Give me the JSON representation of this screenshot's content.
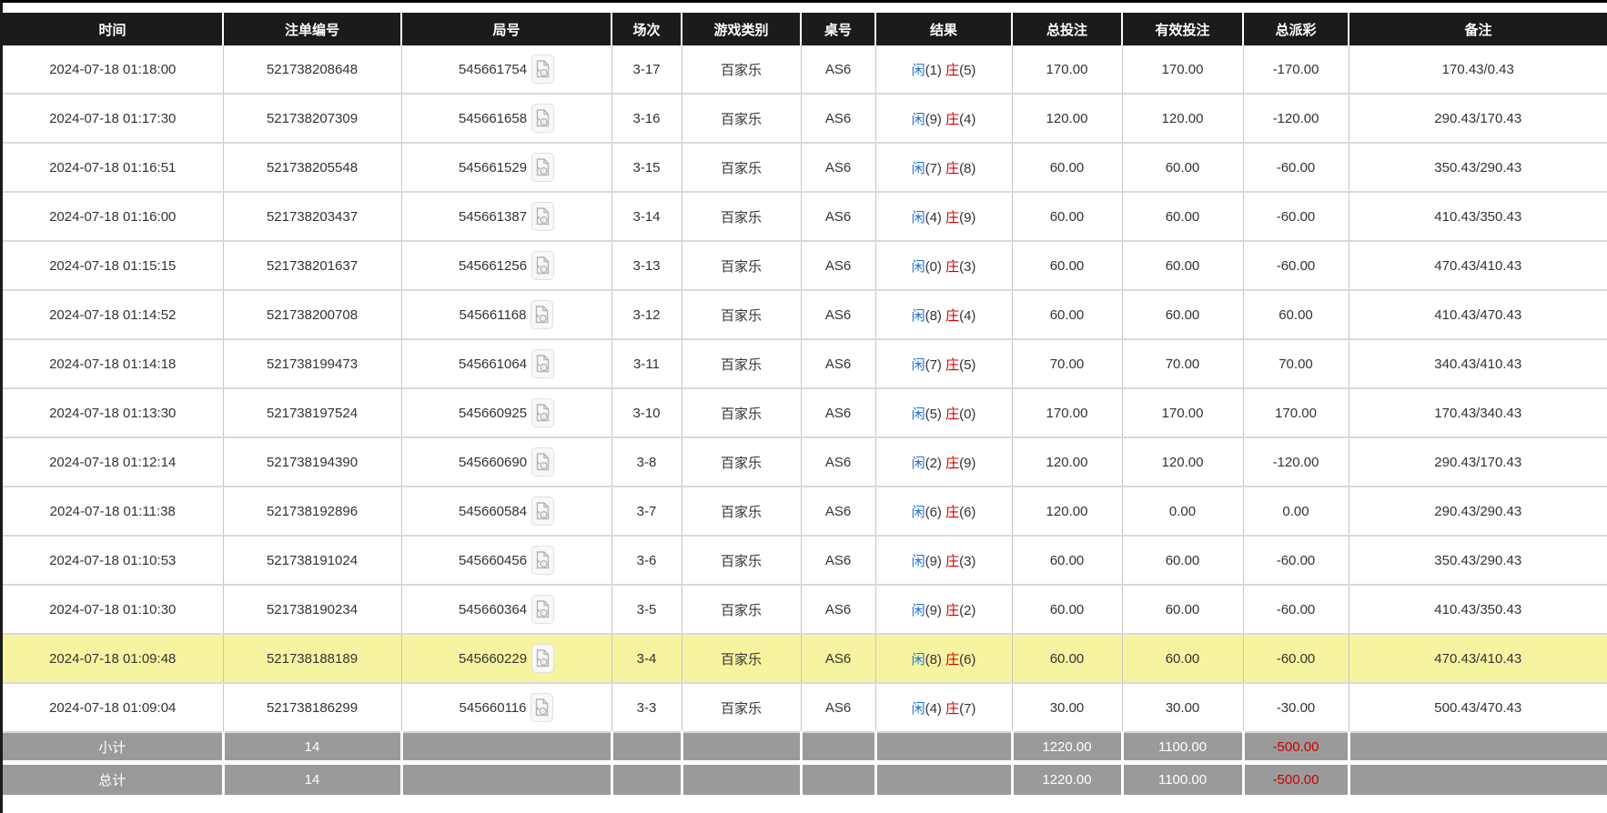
{
  "table": {
    "columns": [
      {
        "key": "time",
        "label": "时间"
      },
      {
        "key": "bet-id",
        "label": "注单编号"
      },
      {
        "key": "round-id",
        "label": "局号"
      },
      {
        "key": "session",
        "label": "场次"
      },
      {
        "key": "game-type",
        "label": "游戏类别"
      },
      {
        "key": "table-no",
        "label": "桌号"
      },
      {
        "key": "result",
        "label": "结果"
      },
      {
        "key": "total-bet",
        "label": "总投注"
      },
      {
        "key": "valid-bet",
        "label": "有效投注"
      },
      {
        "key": "payout",
        "label": "总派彩"
      },
      {
        "key": "remark",
        "label": "备注"
      }
    ],
    "result_labels": {
      "player": "闲",
      "banker": "庄"
    },
    "rows": [
      {
        "time": "2024-07-18 01:18:00",
        "bet_id": "521738208648",
        "round_id": "545661754",
        "session": "3-17",
        "game_type": "百家乐",
        "table_no": "AS6",
        "result": {
          "player": "1",
          "banker": "5"
        },
        "total_bet": "170.00",
        "valid_bet": "170.00",
        "payout": "-170.00",
        "remark": "170.43/0.43",
        "highlight": false
      },
      {
        "time": "2024-07-18 01:17:30",
        "bet_id": "521738207309",
        "round_id": "545661658",
        "session": "3-16",
        "game_type": "百家乐",
        "table_no": "AS6",
        "result": {
          "player": "9",
          "banker": "4"
        },
        "total_bet": "120.00",
        "valid_bet": "120.00",
        "payout": "-120.00",
        "remark": "290.43/170.43",
        "highlight": false
      },
      {
        "time": "2024-07-18 01:16:51",
        "bet_id": "521738205548",
        "round_id": "545661529",
        "session": "3-15",
        "game_type": "百家乐",
        "table_no": "AS6",
        "result": {
          "player": "7",
          "banker": "8"
        },
        "total_bet": "60.00",
        "valid_bet": "60.00",
        "payout": "-60.00",
        "remark": "350.43/290.43",
        "highlight": false
      },
      {
        "time": "2024-07-18 01:16:00",
        "bet_id": "521738203437",
        "round_id": "545661387",
        "session": "3-14",
        "game_type": "百家乐",
        "table_no": "AS6",
        "result": {
          "player": "4",
          "banker": "9"
        },
        "total_bet": "60.00",
        "valid_bet": "60.00",
        "payout": "-60.00",
        "remark": "410.43/350.43",
        "highlight": false
      },
      {
        "time": "2024-07-18 01:15:15",
        "bet_id": "521738201637",
        "round_id": "545661256",
        "session": "3-13",
        "game_type": "百家乐",
        "table_no": "AS6",
        "result": {
          "player": "0",
          "banker": "3"
        },
        "total_bet": "60.00",
        "valid_bet": "60.00",
        "payout": "-60.00",
        "remark": "470.43/410.43",
        "highlight": false
      },
      {
        "time": "2024-07-18 01:14:52",
        "bet_id": "521738200708",
        "round_id": "545661168",
        "session": "3-12",
        "game_type": "百家乐",
        "table_no": "AS6",
        "result": {
          "player": "8",
          "banker": "4"
        },
        "total_bet": "60.00",
        "valid_bet": "60.00",
        "payout": "60.00",
        "remark": "410.43/470.43",
        "highlight": false
      },
      {
        "time": "2024-07-18 01:14:18",
        "bet_id": "521738199473",
        "round_id": "545661064",
        "session": "3-11",
        "game_type": "百家乐",
        "table_no": "AS6",
        "result": {
          "player": "7",
          "banker": "5"
        },
        "total_bet": "70.00",
        "valid_bet": "70.00",
        "payout": "70.00",
        "remark": "340.43/410.43",
        "highlight": false
      },
      {
        "time": "2024-07-18 01:13:30",
        "bet_id": "521738197524",
        "round_id": "545660925",
        "session": "3-10",
        "game_type": "百家乐",
        "table_no": "AS6",
        "result": {
          "player": "5",
          "banker": "0"
        },
        "total_bet": "170.00",
        "valid_bet": "170.00",
        "payout": "170.00",
        "remark": "170.43/340.43",
        "highlight": false
      },
      {
        "time": "2024-07-18 01:12:14",
        "bet_id": "521738194390",
        "round_id": "545660690",
        "session": "3-8",
        "game_type": "百家乐",
        "table_no": "AS6",
        "result": {
          "player": "2",
          "banker": "9"
        },
        "total_bet": "120.00",
        "valid_bet": "120.00",
        "payout": "-120.00",
        "remark": "290.43/170.43",
        "highlight": false
      },
      {
        "time": "2024-07-18 01:11:38",
        "bet_id": "521738192896",
        "round_id": "545660584",
        "session": "3-7",
        "game_type": "百家乐",
        "table_no": "AS6",
        "result": {
          "player": "6",
          "banker": "6"
        },
        "total_bet": "120.00",
        "valid_bet": "0.00",
        "payout": "0.00",
        "remark": "290.43/290.43",
        "highlight": false
      },
      {
        "time": "2024-07-18 01:10:53",
        "bet_id": "521738191024",
        "round_id": "545660456",
        "session": "3-6",
        "game_type": "百家乐",
        "table_no": "AS6",
        "result": {
          "player": "9",
          "banker": "3"
        },
        "total_bet": "60.00",
        "valid_bet": "60.00",
        "payout": "-60.00",
        "remark": "350.43/290.43",
        "highlight": false
      },
      {
        "time": "2024-07-18 01:10:30",
        "bet_id": "521738190234",
        "round_id": "545660364",
        "session": "3-5",
        "game_type": "百家乐",
        "table_no": "AS6",
        "result": {
          "player": "9",
          "banker": "2"
        },
        "total_bet": "60.00",
        "valid_bet": "60.00",
        "payout": "-60.00",
        "remark": "410.43/350.43",
        "highlight": false
      },
      {
        "time": "2024-07-18 01:09:48",
        "bet_id": "521738188189",
        "round_id": "545660229",
        "session": "3-4",
        "game_type": "百家乐",
        "table_no": "AS6",
        "result": {
          "player": "8",
          "banker": "6"
        },
        "total_bet": "60.00",
        "valid_bet": "60.00",
        "payout": "-60.00",
        "remark": "470.43/410.43",
        "highlight": true
      },
      {
        "time": "2024-07-18 01:09:04",
        "bet_id": "521738186299",
        "round_id": "545660116",
        "session": "3-3",
        "game_type": "百家乐",
        "table_no": "AS6",
        "result": {
          "player": "4",
          "banker": "7"
        },
        "total_bet": "30.00",
        "valid_bet": "30.00",
        "payout": "-30.00",
        "remark": "500.43/470.43",
        "highlight": false
      }
    ],
    "subtotal": {
      "label": "小计",
      "count": "14",
      "total_bet": "1220.00",
      "valid_bet": "1100.00",
      "payout": "-500.00"
    },
    "grand_total": {
      "label": "总计",
      "count": "14",
      "total_bet": "1220.00",
      "valid_bet": "1100.00",
      "payout": "-500.00"
    }
  },
  "icons": {
    "round_video": "video-replay-icon"
  },
  "colors": {
    "header_bg": "#1b1b1b",
    "accent_blue": "#2170d8",
    "negative_red": "#cc0000",
    "highlight_yellow": "#f7f4a1",
    "totals_bg": "#9a9a9a",
    "body_text": "#333333"
  }
}
